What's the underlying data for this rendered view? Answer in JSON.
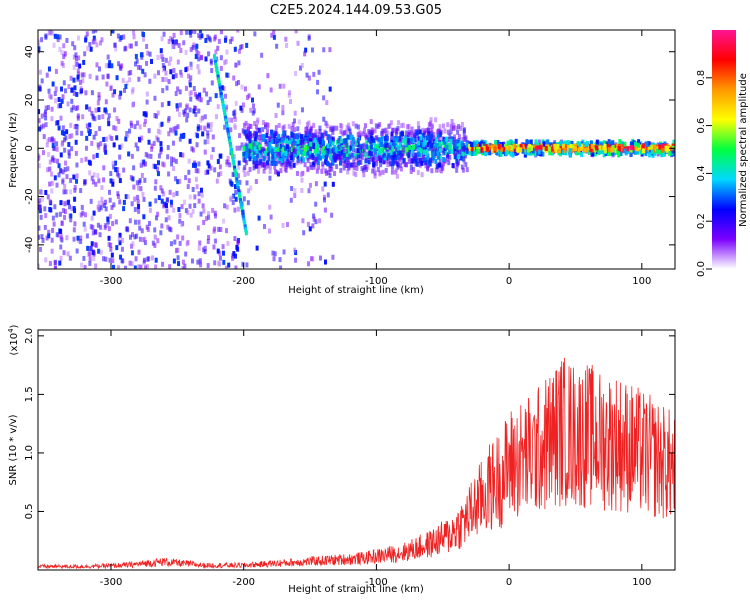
{
  "title": "C2E5.2024.144.09.53.G05",
  "colors": {
    "snr_line": "#ee2222",
    "colorbar_stops": [
      "#ffffff",
      "#7a00ff",
      "#0000ff",
      "#00d8ff",
      "#00ff40",
      "#ffff00",
      "#ff9900",
      "#ff0000",
      "#ff1493"
    ]
  },
  "chart_data": [
    {
      "type": "heatmap",
      "title": "",
      "xlabel": "Height of straight line (km)",
      "ylabel": "Frequency (Hz)",
      "xlim": [
        -355,
        125
      ],
      "ylim": [
        -50,
        49
      ],
      "xticks": [
        -300,
        -200,
        -100,
        0,
        100
      ],
      "yticks": [
        -40,
        -20,
        0,
        20,
        40
      ],
      "xtick_labels": [
        "-300",
        "-200",
        "-100",
        "0",
        "100"
      ],
      "ytick_labels": [
        "-40",
        "-20",
        "0",
        "20",
        "40"
      ],
      "colorbar": {
        "label": "Normalized spectral amplitude",
        "range": [
          0,
          1
        ],
        "ticks": [
          0.0,
          0.2,
          0.4,
          0.6,
          0.8
        ],
        "tick_labels": [
          "0.0",
          "0.2",
          "0.4",
          "0.6",
          "0.8"
        ]
      },
      "features": [
        {
          "description": "diffuse low amplitude noise",
          "x_range": [
            -355,
            -200
          ],
          "freq_range": [
            -50,
            49
          ],
          "amplitude": 0.15
        },
        {
          "description": "diagonal streak",
          "x_start": -222,
          "freq_start": 38,
          "x_end": -198,
          "freq_end": -35,
          "amplitude": 0.4
        },
        {
          "description": "broad band",
          "x_range": [
            -200,
            -30
          ],
          "freq_range": [
            -12,
            12
          ],
          "amplitude": 0.35
        },
        {
          "description": "narrow carrier line",
          "x_range": [
            -30,
            125
          ],
          "freq_range": [
            -3,
            3
          ],
          "amplitude": 0.9
        }
      ]
    },
    {
      "type": "line",
      "title": "",
      "xlabel": "Height of straight line (km)",
      "ylabel": "SNR (10 * v/v)",
      "y_multiplier_label": "(x10",
      "y_multiplier_exp": "4",
      "xlim": [
        -355,
        125
      ],
      "ylim": [
        0,
        2.05
      ],
      "xticks": [
        -300,
        -200,
        -100,
        0,
        100
      ],
      "yticks": [
        0.5,
        1.0,
        1.5,
        2.0
      ],
      "xtick_labels": [
        "-300",
        "-200",
        "-100",
        "0",
        "100"
      ],
      "ytick_labels": [
        "0.5",
        "1.0",
        "1.5",
        "2.0"
      ],
      "series": [
        {
          "color": "#ee2222",
          "x": [
            -355,
            -320,
            -290,
            -260,
            -230,
            -200,
            -170,
            -140,
            -110,
            -80,
            -60,
            -45,
            -35,
            -25,
            -15,
            -5,
            0,
            10,
            20,
            30,
            40,
            50,
            60,
            70,
            80,
            90,
            100,
            110,
            120,
            125
          ],
          "y": [
            0.03,
            0.03,
            0.04,
            0.07,
            0.04,
            0.04,
            0.06,
            0.08,
            0.1,
            0.15,
            0.22,
            0.3,
            0.4,
            0.55,
            0.7,
            0.8,
            0.9,
            0.95,
            1.0,
            1.1,
            1.2,
            1.15,
            1.15,
            1.1,
            1.1,
            1.05,
            1.0,
            0.95,
            0.9,
            0.85
          ]
        }
      ]
    }
  ]
}
